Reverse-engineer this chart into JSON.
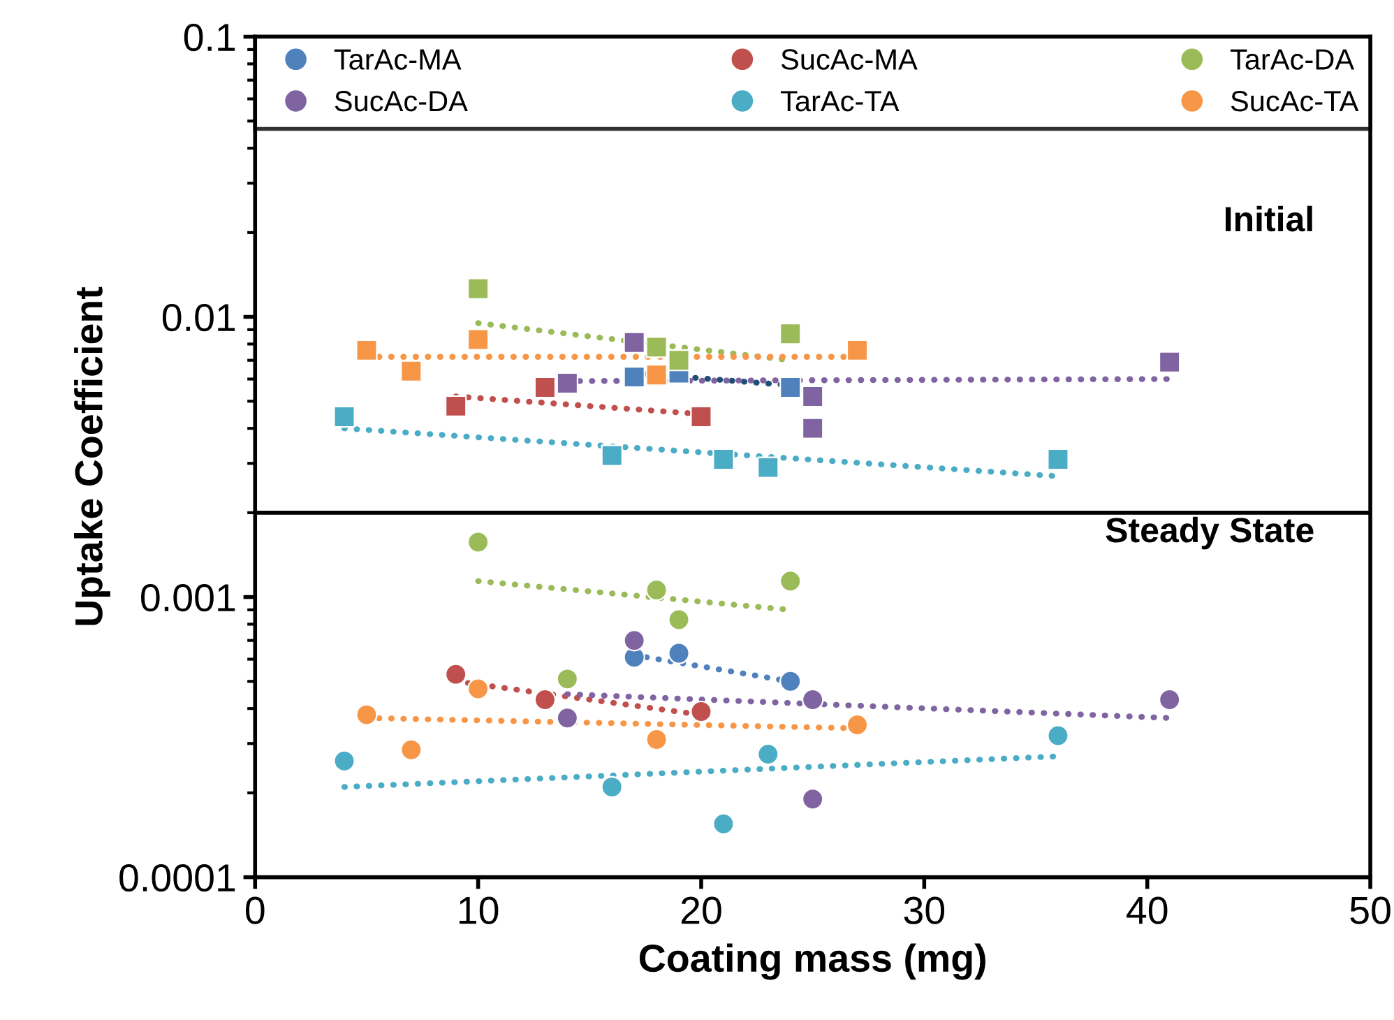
{
  "chart_data": {
    "type": "scatter",
    "xlabel": "Coating mass (mg)",
    "ylabel": "Uptake Coefficient",
    "log": "y",
    "xlim": [
      0,
      50
    ],
    "xticks": [
      0,
      10,
      20,
      30,
      40,
      50
    ],
    "ylim": [
      0.0001,
      0.1
    ],
    "yticks": [
      {
        "value": 0.0001,
        "label": "0.0001"
      },
      {
        "value": 0.001,
        "label": "0.001"
      },
      {
        "value": 0.01,
        "label": "0.01"
      },
      {
        "value": 0.1,
        "label": "0.1"
      }
    ],
    "grid": false,
    "legend": "top",
    "annotations": [
      "Initial",
      "Steady State"
    ],
    "ref_lines": [
      {
        "axis": "y",
        "value": 0.002,
        "color": "#000000"
      }
    ],
    "series": [
      {
        "name": "TarAc-MA",
        "color": "#4f81bd",
        "marker": "circle",
        "x": [
          17,
          19,
          24
        ],
        "values": [
          0.00061,
          0.00063,
          0.0005
        ]
      },
      {
        "name": "SucAc-MA",
        "color": "#c0504d",
        "marker": "circle",
        "x": [
          9,
          13,
          20
        ],
        "values": [
          0.00053,
          0.00043,
          0.00039
        ]
      },
      {
        "name": "TarAc-DA",
        "color": "#9bbb59",
        "marker": "circle",
        "x": [
          10,
          14,
          18,
          19,
          24
        ],
        "values": [
          0.00157,
          0.00051,
          0.00106,
          0.00083,
          0.00114
        ]
      },
      {
        "name": "SucAc-DA",
        "color": "#8064a2",
        "marker": "circle",
        "x": [
          14,
          17,
          25,
          25,
          41
        ],
        "values": [
          0.00037,
          0.0007,
          0.00043,
          0.00019,
          0.00043
        ]
      },
      {
        "name": "TarAc-TA",
        "color": "#4bacc6",
        "marker": "circle",
        "x": [
          4,
          16,
          21,
          23,
          36
        ],
        "values": [
          0.00026,
          0.00021,
          0.000155,
          0.000275,
          0.00032
        ]
      },
      {
        "name": "SucAc-TA",
        "color": "#f79646",
        "marker": "circle",
        "x": [
          5,
          7,
          10,
          18,
          27
        ],
        "values": [
          0.00038,
          0.000285,
          0.00047,
          0.00031,
          0.00035
        ]
      },
      {
        "color": "#4f81bd",
        "marker": "square",
        "x": [
          17,
          19,
          24
        ],
        "values": [
          0.0061,
          0.0063,
          0.0056
        ]
      },
      {
        "color": "#c0504d",
        "marker": "square",
        "x": [
          9,
          13,
          20
        ],
        "values": [
          0.0048,
          0.0056,
          0.0044
        ]
      },
      {
        "color": "#9bbb59",
        "marker": "square",
        "x": [
          10,
          18,
          19,
          24
        ],
        "values": [
          0.0126,
          0.0078,
          0.007,
          0.0087
        ]
      },
      {
        "color": "#8064a2",
        "marker": "square",
        "x": [
          14,
          17,
          25,
          25,
          41
        ],
        "values": [
          0.0058,
          0.0081,
          0.0052,
          0.004,
          0.0069
        ]
      },
      {
        "color": "#4bacc6",
        "marker": "square",
        "x": [
          4,
          16,
          21,
          23,
          36
        ],
        "values": [
          0.0044,
          0.0032,
          0.0031,
          0.0029,
          0.0031
        ]
      },
      {
        "color": "#f79646",
        "marker": "square",
        "x": [
          5,
          7,
          10,
          18,
          27
        ],
        "values": [
          0.0076,
          0.0064,
          0.0083,
          0.0062,
          0.0076
        ]
      },
      {
        "type": "line",
        "line_style": "dotted",
        "color": "#1f4e79",
        "x": [
          17,
          24
        ],
        "values": [
          0.0063,
          0.0057
        ]
      },
      {
        "type": "line",
        "line_style": "dotted",
        "color": "#c0504d",
        "x": [
          9,
          20
        ],
        "values": [
          0.0052,
          0.0045
        ]
      },
      {
        "type": "line",
        "line_style": "dotted",
        "color": "#9bbb59",
        "x": [
          10,
          24
        ],
        "values": [
          0.0095,
          0.007
        ]
      },
      {
        "type": "line",
        "line_style": "dotted",
        "color": "#8064a2",
        "x": [
          14,
          41
        ],
        "values": [
          0.0059,
          0.006
        ]
      },
      {
        "type": "line",
        "line_style": "dotted",
        "color": "#4bacc6",
        "x": [
          4,
          36
        ],
        "values": [
          0.004,
          0.0027
        ]
      },
      {
        "type": "line",
        "line_style": "dotted",
        "color": "#f79646",
        "x": [
          5,
          27
        ],
        "values": [
          0.0072,
          0.0072
        ]
      },
      {
        "type": "line",
        "line_style": "dotted",
        "color": "#4f81bd",
        "x": [
          17,
          24
        ],
        "values": [
          0.00062,
          0.0005
        ]
      },
      {
        "type": "line",
        "line_style": "dotted",
        "color": "#c0504d",
        "x": [
          9,
          20
        ],
        "values": [
          0.0005,
          0.00038
        ]
      },
      {
        "type": "line",
        "line_style": "dotted",
        "color": "#9bbb59",
        "x": [
          10,
          24
        ],
        "values": [
          0.00114,
          0.0009
        ]
      },
      {
        "type": "line",
        "line_style": "dotted",
        "color": "#8064a2",
        "x": [
          14,
          41
        ],
        "values": [
          0.00045,
          0.00037
        ]
      },
      {
        "type": "line",
        "line_style": "dotted",
        "color": "#4bacc6",
        "x": [
          4,
          36
        ],
        "values": [
          0.00021,
          0.00027
        ]
      },
      {
        "type": "line",
        "line_style": "dotted",
        "color": "#f79646",
        "x": [
          5,
          27
        ],
        "values": [
          0.00037,
          0.00034
        ]
      }
    ]
  }
}
